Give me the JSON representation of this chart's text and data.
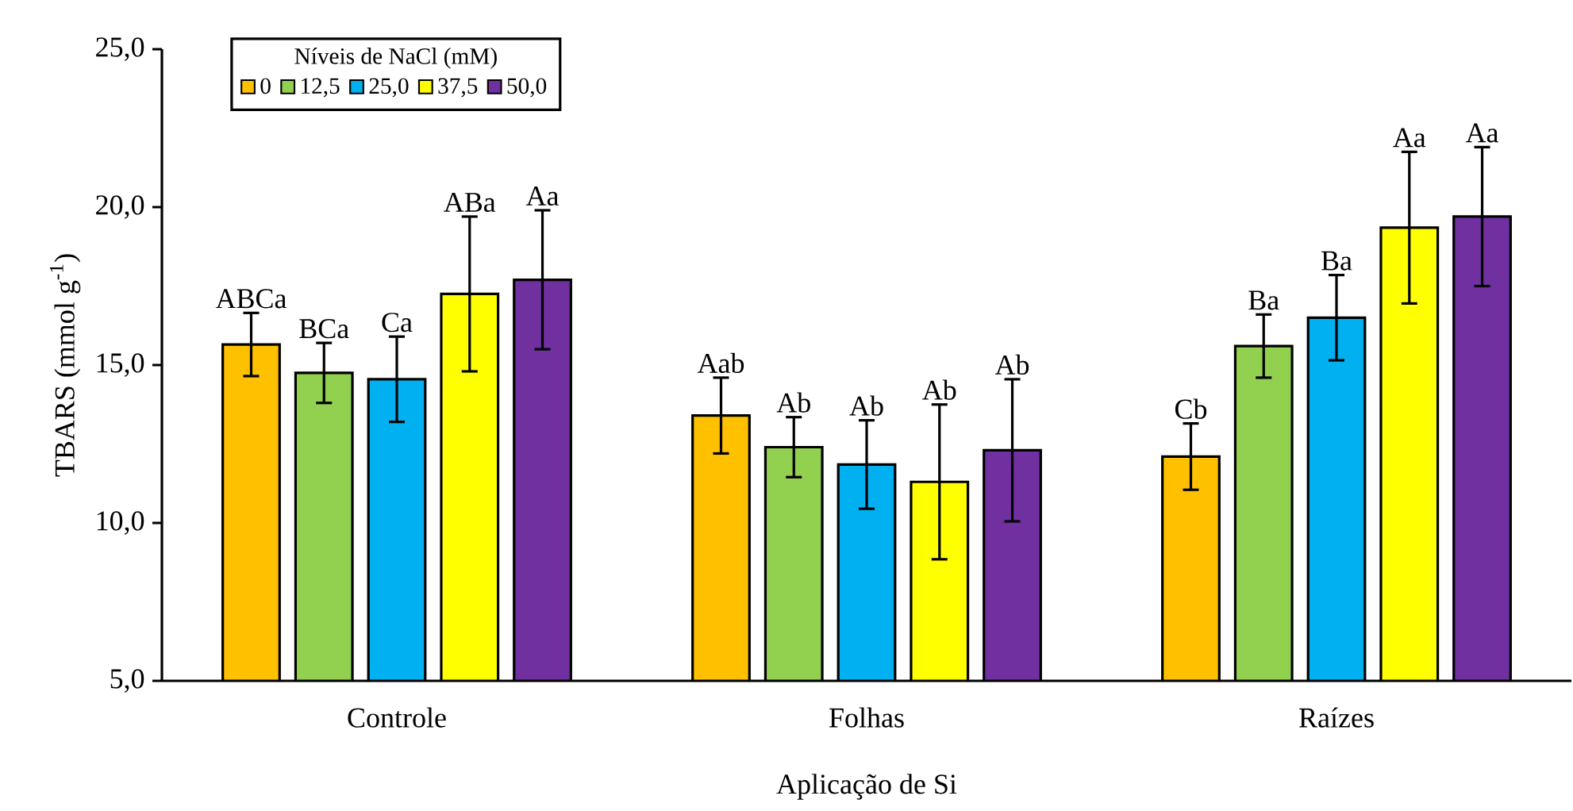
{
  "chart_data": {
    "type": "bar",
    "xlabel": "Aplicação de Si",
    "ylabel": "TBARS (mmol g$^{-1}$)",
    "legend_title": "Níveis de NaCl (mM)",
    "legend": "top left",
    "grid": false,
    "categories": [
      "Controle",
      "Folhas",
      "Raízes"
    ],
    "ylim": [
      5,
      25
    ],
    "yticks": [
      {
        "value": 5,
        "label": "5,0"
      },
      {
        "value": 10,
        "label": "10,0"
      },
      {
        "value": 15,
        "label": "15,0"
      },
      {
        "value": 20,
        "label": "20,0"
      },
      {
        "value": 25,
        "label": "25,0"
      }
    ],
    "series": [
      {
        "name": "0",
        "color": "#ffc000",
        "values": [
          15.65,
          13.4,
          12.1
        ],
        "errors": [
          1.0,
          1.2,
          1.05
        ],
        "value_labels": [
          "ABCa",
          "Aab",
          "Cb"
        ]
      },
      {
        "name": "12,5",
        "color": "#92d050",
        "values": [
          14.75,
          12.4,
          15.6
        ],
        "errors": [
          0.95,
          0.95,
          1.0
        ],
        "value_labels": [
          "BCa",
          "Ab",
          "Ba"
        ]
      },
      {
        "name": "25,0",
        "color": "#00b0f0",
        "values": [
          14.55,
          11.85,
          16.5
        ],
        "errors": [
          1.35,
          1.4,
          1.35
        ],
        "value_labels": [
          "Ca",
          "Ab",
          "Ba"
        ]
      },
      {
        "name": "37,5",
        "color": "#ffff00",
        "values": [
          17.25,
          11.3,
          19.35
        ],
        "errors": [
          2.45,
          2.45,
          2.4
        ],
        "value_labels": [
          "ABa",
          "Ab",
          "Aa"
        ]
      },
      {
        "name": "50,0",
        "color": "#7030a0",
        "values": [
          17.7,
          12.3,
          19.7
        ],
        "errors": [
          2.2,
          2.25,
          2.2
        ],
        "value_labels": [
          "Aa",
          "Ab",
          "Aa"
        ]
      }
    ]
  }
}
